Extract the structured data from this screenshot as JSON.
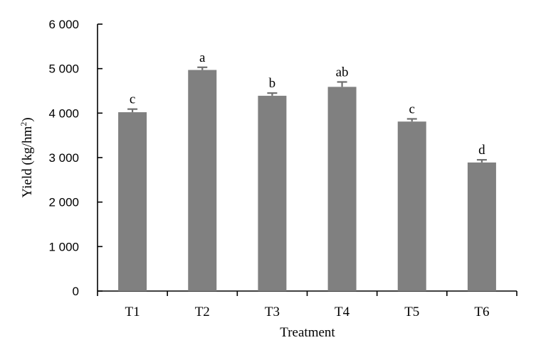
{
  "chart_data": {
    "type": "bar",
    "title": "",
    "xlabel": "Treatment",
    "ylabel": "Yield (kg/hm",
    "ylabel_sup": "2",
    "ylabel_close": ")",
    "categories": [
      "T1",
      "T2",
      "T3",
      "T4",
      "T5",
      "T6"
    ],
    "values": [
      4020,
      4970,
      4390,
      4590,
      3810,
      2890
    ],
    "errors": [
      70,
      60,
      60,
      110,
      60,
      60
    ],
    "significance": [
      "c",
      "a",
      "b",
      "ab",
      "c",
      "d"
    ],
    "ylim": [
      0,
      6000
    ],
    "yticks": [
      0,
      1000,
      2000,
      3000,
      4000,
      5000,
      6000
    ],
    "ytick_labels": [
      "0",
      "1 000",
      "2 000",
      "3 000",
      "4 000",
      "5 000",
      "6 000"
    ],
    "grid": false,
    "legend": false,
    "colors": {
      "bar": "#808080",
      "error_bar": "#6f6f6f",
      "axis": "#000000"
    }
  }
}
